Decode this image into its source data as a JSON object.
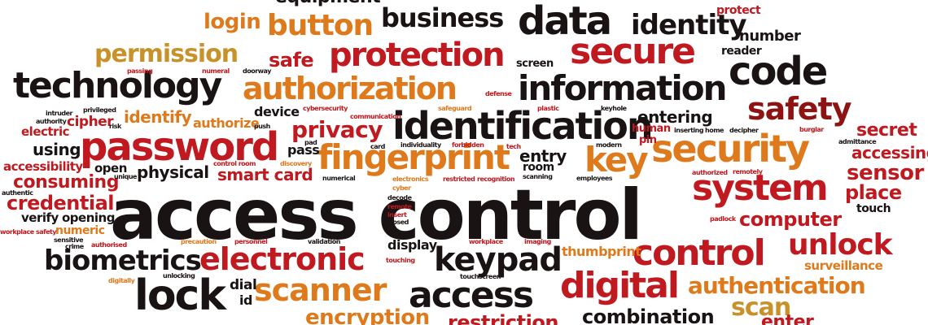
{
  "palette": {
    "black": "#1a1313",
    "red": "#c0191f",
    "dark_red": "#8e1414",
    "orange": "#df7a1c",
    "gold": "#c8922a"
  },
  "words": [
    {
      "text": "access control",
      "color": "black"
    },
    {
      "text": "password",
      "color": "red"
    },
    {
      "text": "technology",
      "color": "black"
    },
    {
      "text": "identification",
      "color": "black"
    },
    {
      "text": "fingerprint",
      "color": "orange"
    },
    {
      "text": "security",
      "color": "orange"
    },
    {
      "text": "system",
      "color": "red"
    },
    {
      "text": "information",
      "color": "black"
    },
    {
      "text": "code",
      "color": "black"
    },
    {
      "text": "secure",
      "color": "red"
    },
    {
      "text": "data",
      "color": "black"
    },
    {
      "text": "protection",
      "color": "red"
    },
    {
      "text": "authorization",
      "color": "orange"
    },
    {
      "text": "business",
      "color": "black"
    },
    {
      "text": "identity",
      "color": "black"
    },
    {
      "text": "button",
      "color": "orange"
    },
    {
      "text": "login",
      "color": "orange"
    },
    {
      "text": "permission",
      "color": "gold"
    },
    {
      "text": "safe",
      "color": "red"
    },
    {
      "text": "safety",
      "color": "dark_red"
    },
    {
      "text": "key",
      "color": "orange"
    },
    {
      "text": "privacy",
      "color": "red"
    },
    {
      "text": "pass",
      "color": "black"
    },
    {
      "text": "smart card",
      "color": "red"
    },
    {
      "text": "physical",
      "color": "black"
    },
    {
      "text": "biometrics",
      "color": "black"
    },
    {
      "text": "electronic",
      "color": "red"
    },
    {
      "text": "lock",
      "color": "black"
    },
    {
      "text": "scanner",
      "color": "orange"
    },
    {
      "text": "access",
      "color": "black"
    },
    {
      "text": "digital",
      "color": "red"
    },
    {
      "text": "keypad",
      "color": "black"
    },
    {
      "text": "control",
      "color": "red"
    },
    {
      "text": "unlock",
      "color": "red"
    },
    {
      "text": "authentication",
      "color": "orange"
    },
    {
      "text": "scan",
      "color": "gold"
    },
    {
      "text": "computer",
      "color": "red"
    },
    {
      "text": "sensor",
      "color": "red"
    },
    {
      "text": "secret",
      "color": "red"
    },
    {
      "text": "accessing",
      "color": "red"
    },
    {
      "text": "place",
      "color": "red"
    },
    {
      "text": "touch",
      "color": "black"
    },
    {
      "text": "surveillance",
      "color": "orange"
    },
    {
      "text": "credential",
      "color": "red"
    },
    {
      "text": "consuming",
      "color": "red"
    },
    {
      "text": "accessibility",
      "color": "red"
    },
    {
      "text": "using",
      "color": "black"
    },
    {
      "text": "electric",
      "color": "red"
    },
    {
      "text": "cipher",
      "color": "red"
    },
    {
      "text": "identify",
      "color": "orange"
    },
    {
      "text": "authorize",
      "color": "orange"
    },
    {
      "text": "device",
      "color": "black"
    },
    {
      "text": "entering",
      "color": "black"
    },
    {
      "text": "entry",
      "color": "black"
    },
    {
      "text": "room",
      "color": "black"
    },
    {
      "text": "open",
      "color": "black"
    },
    {
      "text": "verify",
      "color": "black"
    },
    {
      "text": "opening",
      "color": "black"
    },
    {
      "text": "numeric",
      "color": "orange"
    },
    {
      "text": "dial",
      "color": "black"
    },
    {
      "text": "id",
      "color": "black"
    },
    {
      "text": "display",
      "color": "black"
    },
    {
      "text": "thumbprint",
      "color": "orange"
    },
    {
      "text": "number",
      "color": "black"
    },
    {
      "text": "reader",
      "color": "black"
    },
    {
      "text": "protect",
      "color": "red"
    },
    {
      "text": "screen",
      "color": "black"
    },
    {
      "text": "human",
      "color": "red"
    },
    {
      "text": "pin",
      "color": "red"
    },
    {
      "text": "encryption",
      "color": "orange"
    },
    {
      "text": "restriction",
      "color": "red"
    },
    {
      "text": "combination",
      "color": "black"
    },
    {
      "text": "enter",
      "color": "red"
    },
    {
      "text": "equipment",
      "color": "black"
    },
    {
      "text": "touchscreen",
      "color": "black"
    },
    {
      "text": "workplace safety",
      "color": "red"
    },
    {
      "text": "authentic",
      "color": "black"
    },
    {
      "text": "sensitive",
      "color": "black"
    },
    {
      "text": "crime",
      "color": "black"
    },
    {
      "text": "authorised",
      "color": "red"
    },
    {
      "text": "precaution",
      "color": "orange"
    },
    {
      "text": "personnel",
      "color": "red"
    },
    {
      "text": "validation",
      "color": "black"
    },
    {
      "text": "workplace",
      "color": "red"
    },
    {
      "text": "imaging",
      "color": "red"
    },
    {
      "text": "digitally",
      "color": "orange"
    },
    {
      "text": "unlocking",
      "color": "black"
    },
    {
      "text": "decode",
      "color": "black"
    },
    {
      "text": "remote",
      "color": "red"
    },
    {
      "text": "insert",
      "color": "red"
    },
    {
      "text": "closed",
      "color": "black"
    },
    {
      "text": "touching",
      "color": "red"
    },
    {
      "text": "cyber",
      "color": "orange"
    },
    {
      "text": "electronics",
      "color": "orange"
    },
    {
      "text": "numerical",
      "color": "black"
    },
    {
      "text": "restricted",
      "color": "red"
    },
    {
      "text": "recognition",
      "color": "red"
    },
    {
      "text": "scanning",
      "color": "black"
    },
    {
      "text": "employees",
      "color": "black"
    },
    {
      "text": "authorized",
      "color": "red"
    },
    {
      "text": "remotely",
      "color": "red"
    },
    {
      "text": "padlock",
      "color": "red"
    },
    {
      "text": "admittance",
      "color": "black"
    },
    {
      "text": "burglar",
      "color": "red"
    },
    {
      "text": "decipher",
      "color": "black"
    },
    {
      "text": "home",
      "color": "black"
    },
    {
      "text": "inserting",
      "color": "black"
    },
    {
      "text": "modern",
      "color": "black"
    },
    {
      "text": "keyhole",
      "color": "black"
    },
    {
      "text": "plastic",
      "color": "red"
    },
    {
      "text": "safeguard",
      "color": "orange"
    },
    {
      "text": "defense",
      "color": "red"
    },
    {
      "text": "cybersecurity",
      "color": "red"
    },
    {
      "text": "communication",
      "color": "red"
    },
    {
      "text": "doorway",
      "color": "black"
    },
    {
      "text": "numeral",
      "color": "red"
    },
    {
      "text": "passing",
      "color": "red"
    },
    {
      "text": "intruder",
      "color": "black"
    },
    {
      "text": "authority",
      "color": "black"
    },
    {
      "text": "privileged",
      "color": "black"
    },
    {
      "text": "risk",
      "color": "black"
    },
    {
      "text": "push",
      "color": "black"
    },
    {
      "text": "card",
      "color": "black"
    },
    {
      "text": "individuality",
      "color": "black"
    },
    {
      "text": "forbidden",
      "color": "red"
    },
    {
      "text": "tech",
      "color": "red"
    },
    {
      "text": "control room",
      "color": "red"
    },
    {
      "text": "pad",
      "color": "black"
    },
    {
      "text": "discovery",
      "color": "orange"
    },
    {
      "text": "unique",
      "color": "black"
    }
  ]
}
